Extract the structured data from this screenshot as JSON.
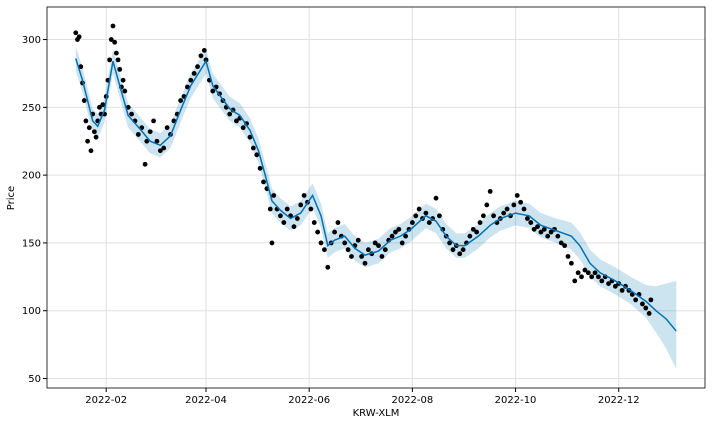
{
  "chart_data": {
    "type": "forecast",
    "xlabel": "KRW-XLM",
    "ylabel": "Price",
    "xlim": [
      -4,
      385
    ],
    "ylim": [
      43,
      324
    ],
    "xticks": [
      {
        "value": 31,
        "label": "2022-02"
      },
      {
        "value": 90,
        "label": "2022-04"
      },
      {
        "value": 151,
        "label": "2022-06"
      },
      {
        "value": 212,
        "label": "2022-08"
      },
      {
        "value": 273,
        "label": "2022-10"
      },
      {
        "value": 334,
        "label": "2022-12"
      }
    ],
    "yticks": [
      50,
      100,
      150,
      200,
      250,
      300
    ],
    "grid": true,
    "series": [
      {
        "color": "#000000",
        "x": [
          13,
          14,
          15,
          16,
          17,
          18,
          19,
          20,
          21,
          22,
          23,
          24,
          25,
          26,
          27,
          28,
          29,
          30,
          31,
          32,
          33,
          34,
          35,
          36,
          37,
          38,
          39,
          40,
          41,
          42,
          44,
          46,
          48,
          50,
          52,
          54,
          55,
          57,
          59,
          61,
          63,
          65,
          67,
          69,
          71,
          73,
          75,
          77,
          79,
          81,
          83,
          85,
          87,
          89,
          90,
          92,
          94,
          96,
          98,
          100,
          102,
          104,
          106,
          108,
          110,
          112,
          114,
          116,
          118,
          120,
          122,
          124,
          126,
          128,
          129,
          130,
          132,
          134,
          136,
          138,
          140,
          142,
          144,
          146,
          148,
          150,
          152,
          154,
          156,
          158,
          160,
          162,
          164,
          166,
          168,
          170,
          172,
          174,
          176,
          178,
          180,
          182,
          184,
          186,
          188,
          190,
          192,
          194,
          196,
          198,
          200,
          202,
          204,
          206,
          208,
          210,
          212,
          214,
          216,
          218,
          220,
          222,
          224,
          226,
          228,
          230,
          232,
          234,
          236,
          238,
          240,
          242,
          244,
          246,
          248,
          250,
          252,
          254,
          256,
          258,
          260,
          262,
          264,
          266,
          268,
          270,
          272,
          274,
          276,
          278,
          280,
          282,
          284,
          286,
          288,
          290,
          292,
          294,
          296,
          298,
          300,
          302,
          304,
          306,
          308,
          310,
          312,
          314,
          316,
          318,
          320,
          322,
          324,
          326,
          328,
          330,
          332,
          334,
          336,
          338,
          340,
          342,
          344,
          346,
          348,
          350,
          352,
          353
        ],
        "values": [
          305,
          300,
          302,
          280,
          268,
          255,
          240,
          225,
          235,
          218,
          245,
          232,
          228,
          240,
          250,
          245,
          252,
          245,
          258,
          270,
          285,
          300,
          310,
          298,
          290,
          285,
          278,
          265,
          270,
          262,
          250,
          245,
          240,
          230,
          235,
          208,
          225,
          232,
          240,
          225,
          218,
          220,
          235,
          230,
          240,
          245,
          255,
          258,
          265,
          270,
          275,
          280,
          288,
          292,
          285,
          270,
          262,
          265,
          260,
          255,
          250,
          245,
          248,
          240,
          242,
          235,
          238,
          228,
          220,
          215,
          205,
          195,
          190,
          175,
          150,
          185,
          175,
          170,
          165,
          175,
          170,
          162,
          168,
          178,
          185,
          180,
          175,
          165,
          158,
          150,
          145,
          132,
          150,
          158,
          165,
          155,
          150,
          145,
          140,
          148,
          152,
          140,
          135,
          145,
          142,
          150,
          148,
          140,
          145,
          152,
          155,
          158,
          160,
          150,
          155,
          160,
          165,
          170,
          175,
          168,
          172,
          165,
          168,
          183,
          170,
          160,
          155,
          150,
          145,
          148,
          142,
          145,
          150,
          155,
          160,
          158,
          165,
          170,
          178,
          188,
          170,
          165,
          168,
          172,
          175,
          170,
          178,
          185,
          180,
          175,
          168,
          165,
          160,
          162,
          158,
          160,
          155,
          158,
          160,
          155,
          150,
          148,
          140,
          135,
          122,
          128,
          125,
          130,
          128,
          125,
          128,
          125,
          122,
          125,
          120,
          122,
          118,
          120,
          115,
          118,
          115,
          112,
          108,
          112,
          105,
          102,
          98,
          108
        ]
      }
    ],
    "forecast": {
      "color": "#0072B2",
      "band_color": "#0072B2",
      "x": [
        13,
        17,
        23,
        26,
        30,
        35,
        39,
        44,
        51,
        57,
        63,
        69,
        75,
        81,
        90,
        94,
        98,
        104,
        110,
        116,
        121,
        125,
        129,
        134,
        140,
        146,
        153,
        158,
        162,
        166,
        172,
        178,
        184,
        192,
        199,
        205,
        211,
        220,
        226,
        232,
        238,
        243,
        251,
        258,
        264,
        273,
        281,
        288,
        297,
        306,
        311,
        317,
        323,
        332,
        341,
        350,
        356,
        362,
        368
      ],
      "values": [
        286,
        270,
        240,
        236,
        248,
        284,
        266,
        244,
        234,
        225,
        222,
        229,
        248,
        266,
        284,
        266,
        259,
        249,
        244,
        233,
        218,
        200,
        181,
        174,
        168,
        172,
        185,
        170,
        148,
        152,
        155,
        146,
        141,
        144,
        152,
        155,
        160,
        170,
        166,
        155,
        148,
        148,
        155,
        163,
        168,
        172,
        170,
        163,
        159,
        155,
        148,
        135,
        128,
        122,
        115,
        107,
        100,
        94,
        85
      ],
      "lower": [
        277,
        261,
        231,
        227,
        239,
        275,
        257,
        235,
        225,
        216,
        213,
        220,
        239,
        257,
        275,
        257,
        250,
        240,
        235,
        224,
        209,
        191,
        172,
        165,
        159,
        163,
        176,
        161,
        139,
        143,
        146,
        137,
        132,
        135,
        143,
        146,
        151,
        161,
        157,
        146,
        139,
        139,
        146,
        154,
        159,
        163,
        161,
        154,
        150,
        145,
        138,
        125,
        118,
        112,
        105,
        95,
        84,
        72,
        57
      ],
      "upper": [
        295,
        279,
        249,
        245,
        257,
        293,
        275,
        253,
        243,
        234,
        231,
        238,
        257,
        275,
        293,
        275,
        268,
        258,
        253,
        242,
        227,
        209,
        190,
        183,
        177,
        181,
        194,
        179,
        157,
        161,
        164,
        155,
        150,
        153,
        161,
        164,
        169,
        179,
        175,
        164,
        157,
        157,
        164,
        172,
        177,
        181,
        179,
        172,
        168,
        165,
        158,
        145,
        138,
        132,
        125,
        119,
        118,
        120,
        122
      ]
    }
  }
}
